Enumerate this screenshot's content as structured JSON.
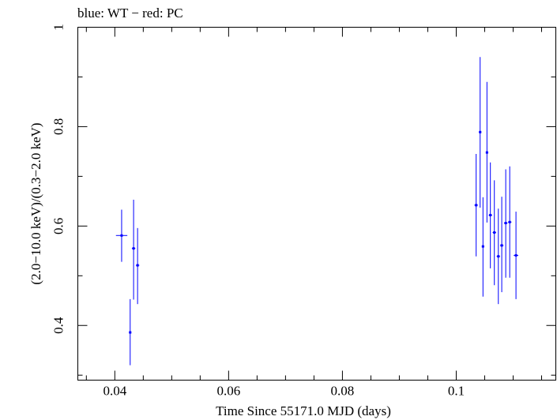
{
  "chart_data": {
    "type": "scatter",
    "title": "blue: WT − red: PC",
    "xlabel": "Time Since 55171.0 MJD (days)",
    "ylabel": "(2.0−10.0 keV)/(0.3−2.0 keV)",
    "xlim": [
      0.0335,
      0.1175
    ],
    "ylim": [
      0.29,
      1.0
    ],
    "x_ticks": [
      {
        "value": 0.04,
        "label": "0.04"
      },
      {
        "value": 0.06,
        "label": "0.06"
      },
      {
        "value": 0.08,
        "label": "0.08"
      },
      {
        "value": 0.1,
        "label": "0.1"
      }
    ],
    "y_ticks": [
      {
        "value": 0.4,
        "label": "0.4"
      },
      {
        "value": 0.6,
        "label": "0.6"
      },
      {
        "value": 0.8,
        "label": "0.8"
      },
      {
        "value": 1.0,
        "label": "1"
      }
    ],
    "series": [
      {
        "name": "WT",
        "color": "#0000ff",
        "points": [
          {
            "x": 0.0412,
            "y": 0.581,
            "xerr": 0.001,
            "ylo": 0.528,
            "yhi": 0.633
          },
          {
            "x": 0.0427,
            "y": 0.386,
            "xerr": 0.0002,
            "ylo": 0.32,
            "yhi": 0.453
          },
          {
            "x": 0.0433,
            "y": 0.555,
            "xerr": 0.0003,
            "ylo": 0.452,
            "yhi": 0.653
          },
          {
            "x": 0.044,
            "y": 0.521,
            "xerr": 0.0003,
            "ylo": 0.443,
            "yhi": 0.596
          },
          {
            "x": 0.1035,
            "y": 0.642,
            "xerr": 0.0003,
            "ylo": 0.539,
            "yhi": 0.745
          },
          {
            "x": 0.1042,
            "y": 0.789,
            "xerr": 0.0002,
            "ylo": 0.637,
            "yhi": 0.94
          },
          {
            "x": 0.1047,
            "y": 0.559,
            "xerr": 0.0002,
            "ylo": 0.458,
            "yhi": 0.658
          },
          {
            "x": 0.1054,
            "y": 0.748,
            "xerr": 0.0002,
            "ylo": 0.607,
            "yhi": 0.89
          },
          {
            "x": 0.106,
            "y": 0.622,
            "xerr": 0.0003,
            "ylo": 0.515,
            "yhi": 0.728
          },
          {
            "x": 0.1067,
            "y": 0.587,
            "xerr": 0.0003,
            "ylo": 0.481,
            "yhi": 0.692
          },
          {
            "x": 0.1074,
            "y": 0.539,
            "xerr": 0.0003,
            "ylo": 0.443,
            "yhi": 0.635
          },
          {
            "x": 0.108,
            "y": 0.561,
            "xerr": 0.0003,
            "ylo": 0.467,
            "yhi": 0.659
          },
          {
            "x": 0.1087,
            "y": 0.606,
            "xerr": 0.0003,
            "ylo": 0.496,
            "yhi": 0.714
          },
          {
            "x": 0.1094,
            "y": 0.608,
            "xerr": 0.0003,
            "ylo": 0.496,
            "yhi": 0.72
          },
          {
            "x": 0.1105,
            "y": 0.541,
            "xerr": 0.0004,
            "ylo": 0.453,
            "yhi": 0.629
          }
        ]
      }
    ]
  }
}
